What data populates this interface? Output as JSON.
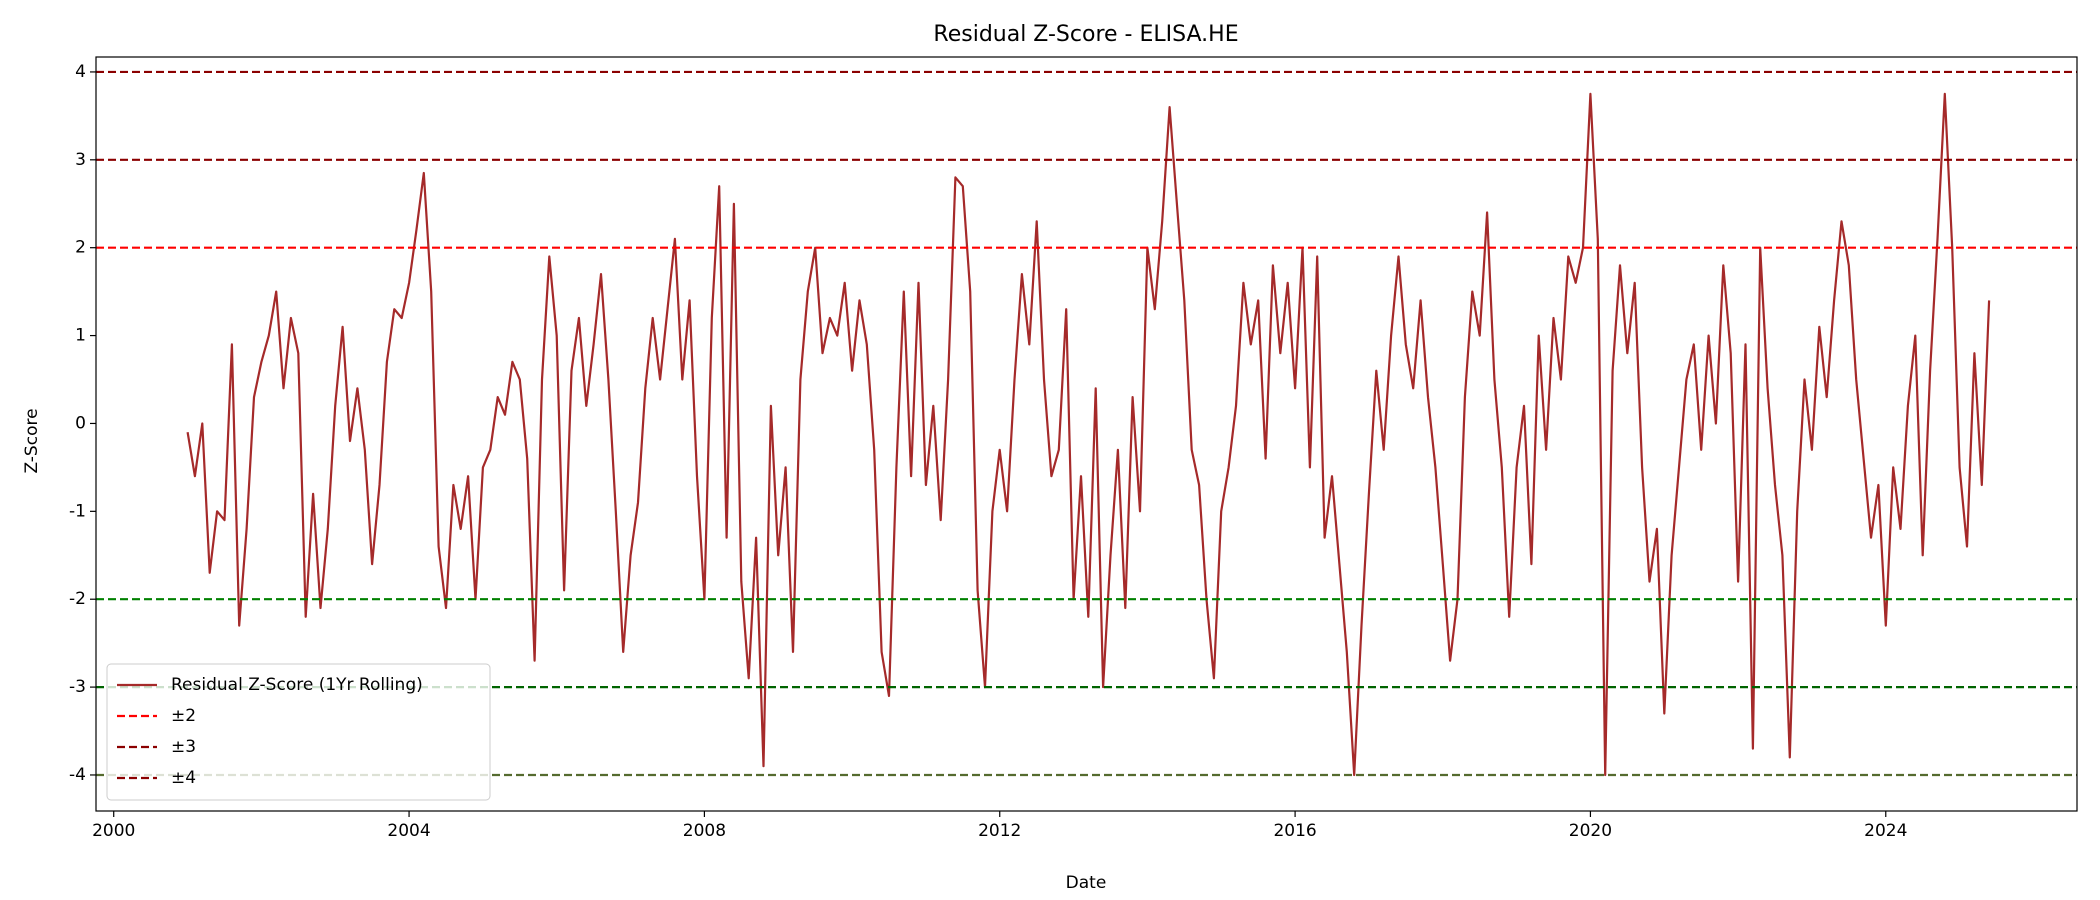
{
  "chart_data": {
    "type": "line",
    "title": "Residual Z-Score - ELISA.HE",
    "xlabel": "Date",
    "ylabel": "Z-Score",
    "xlim": [
      1999.76,
      2026.59
    ],
    "xticks": [
      2000,
      2004,
      2008,
      2012,
      2016,
      2020,
      2024
    ],
    "ylim": [
      -4.41,
      4.17
    ],
    "yticks": [
      -4,
      -3,
      -2,
      -1,
      0,
      1,
      2,
      3,
      4
    ],
    "legend": "lower left",
    "series": [
      {
        "name": "Residual Z-Score (1Yr Rolling)",
        "color": "#a52a2a",
        "x": [
          2001.0,
          2001.1,
          2001.2,
          2001.3,
          2001.4,
          2001.5,
          2001.6,
          2001.7,
          2001.8,
          2001.9,
          2002.0,
          2002.1,
          2002.2,
          2002.3,
          2002.4,
          2002.5,
          2002.6,
          2002.7,
          2002.8,
          2002.9,
          2003.0,
          2003.1,
          2003.2,
          2003.3,
          2003.4,
          2003.5,
          2003.6,
          2003.7,
          2003.8,
          2003.9,
          2004.0,
          2004.1,
          2004.2,
          2004.3,
          2004.4,
          2004.5,
          2004.6,
          2004.7,
          2004.8,
          2004.9,
          2005.0,
          2005.1,
          2005.2,
          2005.3,
          2005.4,
          2005.5,
          2005.6,
          2005.7,
          2005.8,
          2005.9,
          2006.0,
          2006.1,
          2006.2,
          2006.3,
          2006.4,
          2006.5,
          2006.6,
          2006.7,
          2006.8,
          2006.9,
          2007.0,
          2007.1,
          2007.2,
          2007.3,
          2007.4,
          2007.5,
          2007.6,
          2007.7,
          2007.8,
          2007.9,
          2008.0,
          2008.1,
          2008.2,
          2008.3,
          2008.4,
          2008.5,
          2008.6,
          2008.7,
          2008.8,
          2008.9,
          2009.0,
          2009.1,
          2009.2,
          2009.3,
          2009.4,
          2009.5,
          2009.6,
          2009.7,
          2009.8,
          2009.9,
          2010.0,
          2010.1,
          2010.2,
          2010.3,
          2010.4,
          2010.5,
          2010.6,
          2010.7,
          2010.8,
          2010.9,
          2011.0,
          2011.1,
          2011.2,
          2011.3,
          2011.4,
          2011.5,
          2011.6,
          2011.7,
          2011.8,
          2011.9,
          2012.0,
          2012.1,
          2012.2,
          2012.3,
          2012.4,
          2012.5,
          2012.6,
          2012.7,
          2012.8,
          2012.9,
          2013.0,
          2013.1,
          2013.2,
          2013.3,
          2013.4,
          2013.5,
          2013.6,
          2013.7,
          2013.8,
          2013.9,
          2014.0,
          2014.1,
          2014.2,
          2014.3,
          2014.4,
          2014.5,
          2014.6,
          2014.7,
          2014.8,
          2014.9,
          2015.0,
          2015.1,
          2015.2,
          2015.3,
          2015.4,
          2015.5,
          2015.6,
          2015.7,
          2015.8,
          2015.9,
          2016.0,
          2016.1,
          2016.2,
          2016.3,
          2016.4,
          2016.5,
          2016.6,
          2016.7,
          2016.8,
          2016.9,
          2017.0,
          2017.1,
          2017.2,
          2017.3,
          2017.4,
          2017.5,
          2017.6,
          2017.7,
          2017.8,
          2017.9,
          2018.0,
          2018.1,
          2018.2,
          2018.3,
          2018.4,
          2018.5,
          2018.6,
          2018.7,
          2018.8,
          2018.9,
          2019.0,
          2019.1,
          2019.2,
          2019.3,
          2019.4,
          2019.5,
          2019.6,
          2019.7,
          2019.8,
          2019.9,
          2020.0,
          2020.1,
          2020.2,
          2020.3,
          2020.4,
          2020.5,
          2020.6,
          2020.7,
          2020.8,
          2020.9,
          2021.0,
          2021.1,
          2021.2,
          2021.3,
          2021.4,
          2021.5,
          2021.6,
          2021.7,
          2021.8,
          2021.9,
          2022.0,
          2022.1,
          2022.2,
          2022.3,
          2022.4,
          2022.5,
          2022.6,
          2022.7,
          2022.8,
          2022.9,
          2023.0,
          2023.1,
          2023.2,
          2023.3,
          2023.4,
          2023.5,
          2023.6,
          2023.7,
          2023.8,
          2023.9,
          2024.0,
          2024.1,
          2024.2,
          2024.3,
          2024.4,
          2024.5,
          2024.6,
          2024.7,
          2024.8,
          2024.9,
          2025.0,
          2025.1,
          2025.2,
          2025.3,
          2025.4
        ],
        "values": [
          -0.1,
          -0.6,
          0.0,
          -1.7,
          -1.0,
          -1.1,
          0.9,
          -2.3,
          -1.2,
          0.3,
          0.7,
          1.0,
          1.5,
          0.4,
          1.2,
          0.8,
          -2.2,
          -0.8,
          -2.1,
          -1.2,
          0.2,
          1.1,
          -0.2,
          0.4,
          -0.3,
          -1.6,
          -0.7,
          0.7,
          1.3,
          1.2,
          1.6,
          2.2,
          2.85,
          1.5,
          -1.4,
          -2.1,
          -0.7,
          -1.2,
          -0.6,
          -2.0,
          -0.5,
          -0.3,
          0.3,
          0.1,
          0.7,
          0.5,
          -0.4,
          -2.7,
          0.5,
          1.9,
          1.0,
          -1.9,
          0.6,
          1.2,
          0.2,
          0.9,
          1.7,
          0.5,
          -1.0,
          -2.6,
          -1.5,
          -0.9,
          0.4,
          1.2,
          0.5,
          1.3,
          2.1,
          0.5,
          1.4,
          -0.6,
          -2.0,
          1.2,
          2.7,
          -1.3,
          2.5,
          -1.8,
          -2.9,
          -1.3,
          -3.9,
          0.2,
          -1.5,
          -0.5,
          -2.6,
          0.5,
          1.5,
          2.0,
          0.8,
          1.2,
          1.0,
          1.6,
          0.6,
          1.4,
          0.9,
          -0.3,
          -2.6,
          -3.1,
          -0.5,
          1.5,
          -0.6,
          1.6,
          -0.7,
          0.2,
          -1.1,
          0.5,
          2.8,
          2.7,
          1.5,
          -1.9,
          -3.0,
          -1.0,
          -0.3,
          -1.0,
          0.5,
          1.7,
          0.9,
          2.3,
          0.5,
          -0.6,
          -0.3,
          1.3,
          -2.0,
          -0.6,
          -2.2,
          0.4,
          -3.0,
          -1.5,
          -0.3,
          -2.1,
          0.3,
          -1.0,
          2.0,
          1.3,
          2.3,
          3.6,
          2.5,
          1.4,
          -0.3,
          -0.7,
          -2.0,
          -2.9,
          -1.0,
          -0.5,
          0.2,
          1.6,
          0.9,
          1.4,
          -0.4,
          1.8,
          0.8,
          1.6,
          0.4,
          2.0,
          -0.5,
          1.9,
          -1.3,
          -0.6,
          -1.6,
          -2.6,
          -4.0,
          -2.3,
          -0.8,
          0.6,
          -0.3,
          1.0,
          1.9,
          0.9,
          0.4,
          1.4,
          0.3,
          -0.5,
          -1.6,
          -2.7,
          -2.0,
          0.3,
          1.5,
          1.0,
          2.4,
          0.5,
          -0.5,
          -2.2,
          -0.5,
          0.2,
          -1.6,
          1.0,
          -0.3,
          1.2,
          0.5,
          1.9,
          1.6,
          2.0,
          3.75,
          2.1,
          -4.0,
          0.6,
          1.8,
          0.8,
          1.6,
          -0.5,
          -1.8,
          -1.2,
          -3.3,
          -1.5,
          -0.5,
          0.5,
          0.9,
          -0.3,
          1.0,
          0.0,
          1.8,
          0.8,
          -1.8,
          0.9,
          -3.7,
          2.0,
          0.4,
          -0.7,
          -1.5,
          -3.8,
          -1.0,
          0.5,
          -0.3,
          1.1,
          0.3,
          1.4,
          2.3,
          1.8,
          0.5,
          -0.4,
          -1.3,
          -0.7,
          -2.3,
          -0.5,
          -1.2,
          0.2,
          1.0,
          -1.5,
          0.6,
          2.1,
          3.75,
          2.0,
          -0.5,
          -1.4,
          0.8,
          -0.7,
          1.4
        ]
      }
    ],
    "reference_lines": [
      {
        "name": "±2",
        "values": [
          2,
          -2
        ],
        "colors": [
          "#ff0000",
          "#008000"
        ]
      },
      {
        "name": "±3",
        "values": [
          3,
          -3
        ],
        "colors": [
          "#8b0000",
          "#006400"
        ]
      },
      {
        "name": "±4",
        "values": [
          4,
          -4
        ],
        "colors": [
          "#8b0000",
          "#556b2f"
        ]
      }
    ]
  }
}
